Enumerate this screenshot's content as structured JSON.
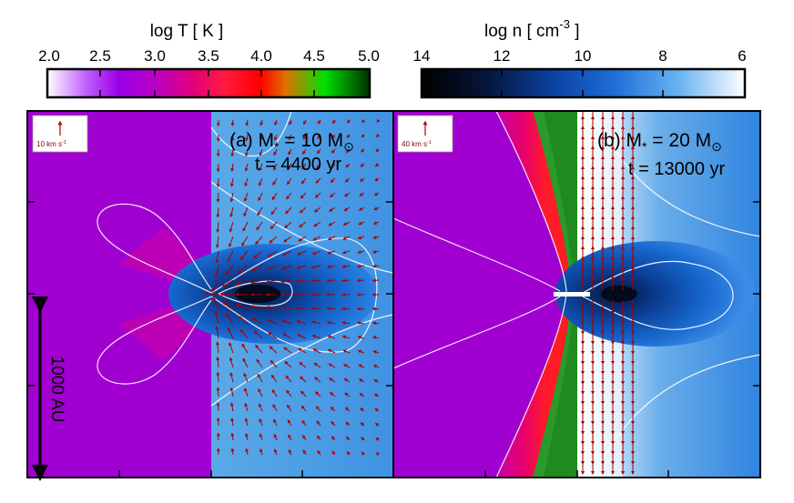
{
  "temperature_colorbar": {
    "label": "log T   [ K ]",
    "ticks": [
      "2.0",
      "2.5",
      "3.0",
      "3.5",
      "4.0",
      "4.5",
      "5.0"
    ],
    "range": [
      2.0,
      5.0
    ]
  },
  "density_colorbar": {
    "label_base": "log n   [ cm",
    "label_exp": "-3",
    "label_close": " ]",
    "ticks": [
      "14",
      "12",
      "10",
      "8",
      "6"
    ],
    "range": [
      14,
      6
    ]
  },
  "panel_a": {
    "title_label": "(a) M",
    "title_sub": "*",
    "title_eq": " =  10 M",
    "title_sun": "⊙",
    "time_label": "t = 4400 yr",
    "arrow_scale": "10 km s",
    "arrow_scale_exp": "-1"
  },
  "panel_b": {
    "title_label": "(b) M",
    "title_sub": "*",
    "title_eq": " =  20 M",
    "title_sun": "⊙",
    "time_label": "t  = 13000 yr",
    "arrow_scale": "40 km s",
    "arrow_scale_exp": "-1"
  },
  "scale_bar_label": "1000 AU",
  "chart_data": {
    "type": "heatmap",
    "panels": [
      {
        "id": "a",
        "stellar_mass_msun": 10,
        "time_yr": 4400,
        "left_half": "log T",
        "right_half": "log n",
        "velocity_scale_km_s": 10
      },
      {
        "id": "b",
        "stellar_mass_msun": 20,
        "time_yr": 13000,
        "left_half": "log T",
        "right_half": "log n",
        "velocity_scale_km_s": 40
      }
    ],
    "colorbars": [
      {
        "quantity": "log T",
        "unit": "K",
        "range": [
          2.0,
          5.0
        ]
      },
      {
        "quantity": "log n",
        "unit": "cm^-3",
        "range": [
          14,
          6
        ]
      }
    ],
    "scale_bar_au": 1000
  }
}
